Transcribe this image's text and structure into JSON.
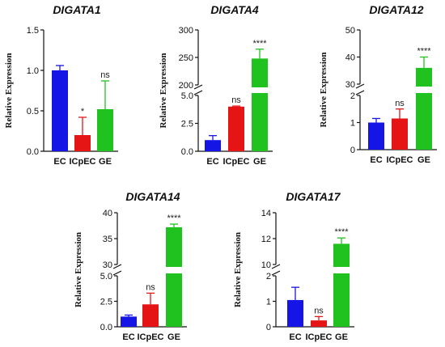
{
  "chart_data": [
    {
      "type": "bar",
      "title": "DIGATA1",
      "ylabel": "Relative Expression",
      "categories": [
        "EC",
        "ICpEC",
        "GE"
      ],
      "values": [
        1.0,
        0.2,
        0.52
      ],
      "errors": [
        0.06,
        0.22,
        0.35
      ],
      "annotations": [
        "",
        "*",
        "ns"
      ],
      "colors": [
        "#1515e6",
        "#e61515",
        "#1fc21f"
      ],
      "segments": [
        {
          "range": [
            0,
            1.5
          ],
          "ticks": [
            "0.0",
            "0.5",
            "1.0",
            "1.5"
          ]
        }
      ]
    },
    {
      "type": "bar",
      "title": "DIGATA4",
      "ylabel": "Relative Expression",
      "categories": [
        "EC",
        "ICpEC",
        "GE"
      ],
      "values": [
        1.0,
        4.0,
        248
      ],
      "errors": [
        0.4,
        0.05,
        17
      ],
      "annotations": [
        "",
        "ns",
        "****"
      ],
      "colors": [
        "#1515e6",
        "#e61515",
        "#1fc21f"
      ],
      "segments": [
        {
          "range": [
            0,
            5.0
          ],
          "ticks": [
            "0.0",
            "2.5",
            "5.0"
          ]
        },
        {
          "range": [
            200,
            300
          ],
          "ticks": [
            "200",
            "250",
            "300"
          ]
        }
      ]
    },
    {
      "type": "bar",
      "title": "DIGATA12",
      "ylabel": "Relative Expression",
      "categories": [
        "EC",
        "ICpEC",
        "GE"
      ],
      "values": [
        1.0,
        1.15,
        36
      ],
      "errors": [
        0.15,
        0.35,
        4
      ],
      "annotations": [
        "",
        "ns",
        "****"
      ],
      "colors": [
        "#1515e6",
        "#e61515",
        "#1fc21f"
      ],
      "segments": [
        {
          "range": [
            0,
            2
          ],
          "ticks": [
            "0",
            "1",
            "2"
          ]
        },
        {
          "range": [
            30,
            50
          ],
          "ticks": [
            "30",
            "40",
            "50"
          ]
        }
      ]
    },
    {
      "type": "bar",
      "title": "DIGATA14",
      "ylabel": "Relative Expression",
      "categories": [
        "EC",
        "ICpEC",
        "GE"
      ],
      "values": [
        1.0,
        2.2,
        37.2
      ],
      "errors": [
        0.15,
        1.1,
        0.6
      ],
      "annotations": [
        "",
        "ns",
        "****"
      ],
      "colors": [
        "#1515e6",
        "#e61515",
        "#1fc21f"
      ],
      "segments": [
        {
          "range": [
            0,
            5.0
          ],
          "ticks": [
            "0.0",
            "2.5",
            "5.0"
          ]
        },
        {
          "range": [
            30,
            40
          ],
          "ticks": [
            "30",
            "35",
            "40"
          ]
        }
      ]
    },
    {
      "type": "bar",
      "title": "DIGATA17",
      "ylabel": "Relative Expression",
      "categories": [
        "EC",
        "ICpEC",
        "GE"
      ],
      "values": [
        1.05,
        0.25,
        11.6
      ],
      "errors": [
        0.5,
        0.15,
        0.45
      ],
      "annotations": [
        "",
        "ns",
        "****"
      ],
      "colors": [
        "#1515e6",
        "#e61515",
        "#1fc21f"
      ],
      "segments": [
        {
          "range": [
            0,
            2
          ],
          "ticks": [
            "0",
            "1",
            "2"
          ]
        },
        {
          "range": [
            10,
            14
          ],
          "ticks": [
            "10",
            "12",
            "14"
          ]
        }
      ]
    }
  ]
}
